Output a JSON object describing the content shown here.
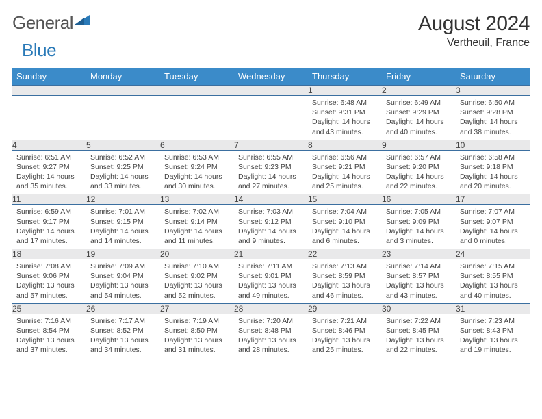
{
  "brand": {
    "part1": "General",
    "part2": "Blue"
  },
  "title": "August 2024",
  "location": "Vertheuil, France",
  "colors": {
    "header_bg": "#3b8bc9",
    "header_text": "#ffffff",
    "daynum_bg": "#e9e9ea",
    "border": "#3b6fa0",
    "text": "#333333",
    "brand_blue": "#2a7ab8"
  },
  "day_headers": [
    "Sunday",
    "Monday",
    "Tuesday",
    "Wednesday",
    "Thursday",
    "Friday",
    "Saturday"
  ],
  "weeks": [
    [
      null,
      null,
      null,
      null,
      {
        "n": "1",
        "sunrise": "6:48 AM",
        "sunset": "9:31 PM",
        "dl_h": "14",
        "dl_m": "43"
      },
      {
        "n": "2",
        "sunrise": "6:49 AM",
        "sunset": "9:29 PM",
        "dl_h": "14",
        "dl_m": "40"
      },
      {
        "n": "3",
        "sunrise": "6:50 AM",
        "sunset": "9:28 PM",
        "dl_h": "14",
        "dl_m": "38"
      }
    ],
    [
      {
        "n": "4",
        "sunrise": "6:51 AM",
        "sunset": "9:27 PM",
        "dl_h": "14",
        "dl_m": "35"
      },
      {
        "n": "5",
        "sunrise": "6:52 AM",
        "sunset": "9:25 PM",
        "dl_h": "14",
        "dl_m": "33"
      },
      {
        "n": "6",
        "sunrise": "6:53 AM",
        "sunset": "9:24 PM",
        "dl_h": "14",
        "dl_m": "30"
      },
      {
        "n": "7",
        "sunrise": "6:55 AM",
        "sunset": "9:23 PM",
        "dl_h": "14",
        "dl_m": "27"
      },
      {
        "n": "8",
        "sunrise": "6:56 AM",
        "sunset": "9:21 PM",
        "dl_h": "14",
        "dl_m": "25"
      },
      {
        "n": "9",
        "sunrise": "6:57 AM",
        "sunset": "9:20 PM",
        "dl_h": "14",
        "dl_m": "22"
      },
      {
        "n": "10",
        "sunrise": "6:58 AM",
        "sunset": "9:18 PM",
        "dl_h": "14",
        "dl_m": "20"
      }
    ],
    [
      {
        "n": "11",
        "sunrise": "6:59 AM",
        "sunset": "9:17 PM",
        "dl_h": "14",
        "dl_m": "17"
      },
      {
        "n": "12",
        "sunrise": "7:01 AM",
        "sunset": "9:15 PM",
        "dl_h": "14",
        "dl_m": "14"
      },
      {
        "n": "13",
        "sunrise": "7:02 AM",
        "sunset": "9:14 PM",
        "dl_h": "14",
        "dl_m": "11"
      },
      {
        "n": "14",
        "sunrise": "7:03 AM",
        "sunset": "9:12 PM",
        "dl_h": "14",
        "dl_m": "9"
      },
      {
        "n": "15",
        "sunrise": "7:04 AM",
        "sunset": "9:10 PM",
        "dl_h": "14",
        "dl_m": "6"
      },
      {
        "n": "16",
        "sunrise": "7:05 AM",
        "sunset": "9:09 PM",
        "dl_h": "14",
        "dl_m": "3"
      },
      {
        "n": "17",
        "sunrise": "7:07 AM",
        "sunset": "9:07 PM",
        "dl_h": "14",
        "dl_m": "0"
      }
    ],
    [
      {
        "n": "18",
        "sunrise": "7:08 AM",
        "sunset": "9:06 PM",
        "dl_h": "13",
        "dl_m": "57"
      },
      {
        "n": "19",
        "sunrise": "7:09 AM",
        "sunset": "9:04 PM",
        "dl_h": "13",
        "dl_m": "54"
      },
      {
        "n": "20",
        "sunrise": "7:10 AM",
        "sunset": "9:02 PM",
        "dl_h": "13",
        "dl_m": "52"
      },
      {
        "n": "21",
        "sunrise": "7:11 AM",
        "sunset": "9:01 PM",
        "dl_h": "13",
        "dl_m": "49"
      },
      {
        "n": "22",
        "sunrise": "7:13 AM",
        "sunset": "8:59 PM",
        "dl_h": "13",
        "dl_m": "46"
      },
      {
        "n": "23",
        "sunrise": "7:14 AM",
        "sunset": "8:57 PM",
        "dl_h": "13",
        "dl_m": "43"
      },
      {
        "n": "24",
        "sunrise": "7:15 AM",
        "sunset": "8:55 PM",
        "dl_h": "13",
        "dl_m": "40"
      }
    ],
    [
      {
        "n": "25",
        "sunrise": "7:16 AM",
        "sunset": "8:54 PM",
        "dl_h": "13",
        "dl_m": "37"
      },
      {
        "n": "26",
        "sunrise": "7:17 AM",
        "sunset": "8:52 PM",
        "dl_h": "13",
        "dl_m": "34"
      },
      {
        "n": "27",
        "sunrise": "7:19 AM",
        "sunset": "8:50 PM",
        "dl_h": "13",
        "dl_m": "31"
      },
      {
        "n": "28",
        "sunrise": "7:20 AM",
        "sunset": "8:48 PM",
        "dl_h": "13",
        "dl_m": "28"
      },
      {
        "n": "29",
        "sunrise": "7:21 AM",
        "sunset": "8:46 PM",
        "dl_h": "13",
        "dl_m": "25"
      },
      {
        "n": "30",
        "sunrise": "7:22 AM",
        "sunset": "8:45 PM",
        "dl_h": "13",
        "dl_m": "22"
      },
      {
        "n": "31",
        "sunrise": "7:23 AM",
        "sunset": "8:43 PM",
        "dl_h": "13",
        "dl_m": "19"
      }
    ]
  ]
}
